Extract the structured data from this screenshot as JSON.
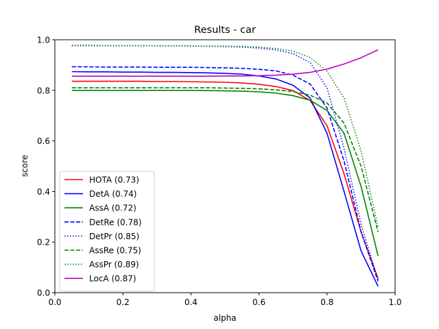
{
  "chart_data": {
    "type": "line",
    "title": "Results - car",
    "xlabel": "alpha",
    "ylabel": "score",
    "xlim": [
      0.0,
      1.0
    ],
    "ylim": [
      0.0,
      1.0
    ],
    "xticks": [
      "0.0",
      "0.2",
      "0.4",
      "0.6",
      "0.8",
      "1.0"
    ],
    "yticks": [
      "0.0",
      "0.2",
      "0.4",
      "0.6",
      "0.8",
      "1.0"
    ],
    "grid": false,
    "legend_position": "lower-left",
    "x": [
      0.05,
      0.1,
      0.15,
      0.2,
      0.25,
      0.3,
      0.35,
      0.4,
      0.45,
      0.5,
      0.55,
      0.6,
      0.65,
      0.7,
      0.75,
      0.8,
      0.85,
      0.9,
      0.95
    ],
    "series": [
      {
        "name": "HOTA (0.73)",
        "color": "#ff0000",
        "dash": "solid",
        "values": [
          0.836,
          0.836,
          0.836,
          0.836,
          0.836,
          0.835,
          0.835,
          0.834,
          0.833,
          0.832,
          0.829,
          0.824,
          0.815,
          0.799,
          0.76,
          0.66,
          0.47,
          0.24,
          0.055
        ]
      },
      {
        "name": "DetA (0.74)",
        "color": "#0000ff",
        "dash": "solid",
        "values": [
          0.874,
          0.873,
          0.873,
          0.872,
          0.872,
          0.871,
          0.871,
          0.87,
          0.869,
          0.867,
          0.864,
          0.857,
          0.845,
          0.82,
          0.77,
          0.63,
          0.4,
          0.165,
          0.025
        ]
      },
      {
        "name": "AssA (0.72)",
        "color": "#008000",
        "dash": "solid",
        "values": [
          0.8,
          0.8,
          0.8,
          0.8,
          0.8,
          0.8,
          0.8,
          0.8,
          0.799,
          0.798,
          0.797,
          0.794,
          0.789,
          0.779,
          0.761,
          0.72,
          0.63,
          0.42,
          0.145
        ]
      },
      {
        "name": "DetRe (0.78)",
        "color": "#0000ff",
        "dash": "dashed",
        "values": [
          0.893,
          0.893,
          0.892,
          0.892,
          0.892,
          0.891,
          0.891,
          0.891,
          0.89,
          0.889,
          0.887,
          0.883,
          0.877,
          0.86,
          0.825,
          0.73,
          0.52,
          0.24,
          0.045
        ]
      },
      {
        "name": "DetPr (0.85)",
        "color": "#0000ff",
        "dash": "dotted",
        "values": [
          0.978,
          0.978,
          0.977,
          0.977,
          0.977,
          0.976,
          0.976,
          0.975,
          0.974,
          0.973,
          0.971,
          0.967,
          0.96,
          0.945,
          0.91,
          0.81,
          0.57,
          0.27,
          0.05
        ]
      },
      {
        "name": "AssRe (0.75)",
        "color": "#008000",
        "dash": "dashed",
        "values": [
          0.81,
          0.81,
          0.81,
          0.81,
          0.81,
          0.81,
          0.81,
          0.81,
          0.81,
          0.809,
          0.808,
          0.806,
          0.802,
          0.795,
          0.781,
          0.75,
          0.67,
          0.5,
          0.24
        ]
      },
      {
        "name": "AssPr (0.89)",
        "color": "#008000",
        "dash": "dotted",
        "values": [
          0.976,
          0.976,
          0.976,
          0.976,
          0.976,
          0.976,
          0.976,
          0.976,
          0.975,
          0.975,
          0.974,
          0.971,
          0.965,
          0.955,
          0.93,
          0.875,
          0.77,
          0.56,
          0.26
        ]
      },
      {
        "name": "LocA (0.87)",
        "color": "#bf00bf",
        "dash": "solid",
        "values": [
          0.856,
          0.856,
          0.856,
          0.856,
          0.856,
          0.856,
          0.856,
          0.856,
          0.856,
          0.857,
          0.857,
          0.858,
          0.86,
          0.864,
          0.871,
          0.884,
          0.904,
          0.929,
          0.96
        ]
      }
    ]
  }
}
